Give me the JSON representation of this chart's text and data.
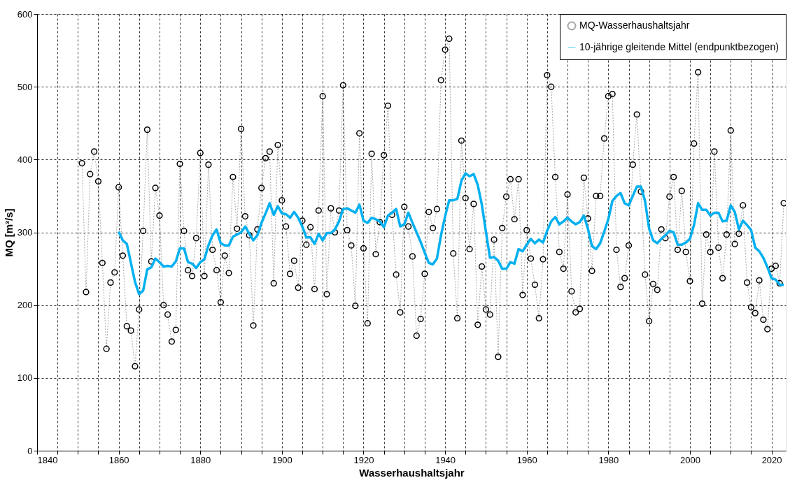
{
  "chart_data": {
    "type": "line",
    "xlabel": "Wasserhaushaltsjahr",
    "ylabel": "MQ [m³/s]",
    "x": [
      1851,
      1852,
      1853,
      1854,
      1855,
      1856,
      1857,
      1858,
      1859,
      1860,
      1861,
      1862,
      1863,
      1864,
      1865,
      1866,
      1867,
      1868,
      1869,
      1870,
      1871,
      1872,
      1873,
      1874,
      1875,
      1876,
      1877,
      1878,
      1879,
      1880,
      1881,
      1882,
      1883,
      1884,
      1885,
      1886,
      1887,
      1888,
      1889,
      1890,
      1891,
      1892,
      1893,
      1894,
      1895,
      1896,
      1897,
      1898,
      1899,
      1900,
      1901,
      1902,
      1903,
      1904,
      1905,
      1906,
      1907,
      1908,
      1909,
      1910,
      1911,
      1912,
      1913,
      1914,
      1915,
      1916,
      1917,
      1918,
      1919,
      1920,
      1921,
      1922,
      1923,
      1924,
      1925,
      1926,
      1927,
      1928,
      1929,
      1930,
      1931,
      1932,
      1933,
      1934,
      1935,
      1936,
      1937,
      1938,
      1939,
      1940,
      1941,
      1942,
      1943,
      1944,
      1945,
      1946,
      1947,
      1948,
      1949,
      1950,
      1951,
      1952,
      1953,
      1954,
      1955,
      1956,
      1957,
      1958,
      1959,
      1960,
      1961,
      1962,
      1963,
      1964,
      1965,
      1966,
      1967,
      1968,
      1969,
      1970,
      1971,
      1972,
      1973,
      1974,
      1975,
      1976,
      1977,
      1978,
      1979,
      1980,
      1981,
      1982,
      1983,
      1984,
      1985,
      1986,
      1987,
      1988,
      1989,
      1990,
      1991,
      1992,
      1993,
      1994,
      1995,
      1996,
      1997,
      1998,
      1999,
      2000,
      2001,
      2002,
      2003,
      2004,
      2005,
      2006,
      2007,
      2008,
      2009,
      2010,
      2011,
      2012,
      2013,
      2014,
      2015,
      2016,
      2017,
      2018,
      2019,
      2020,
      2021,
      2022,
      2023
    ],
    "series": [
      {
        "name": "MQ-Wasserhaushaltsjahr",
        "color": "#000000",
        "marker": "circle",
        "line_style": "dotted",
        "values": [
          395,
          218,
          380,
          411,
          370,
          258,
          140,
          231,
          245,
          362,
          268,
          171,
          165,
          116,
          194,
          302,
          441,
          260,
          361,
          323,
          200,
          187,
          150,
          166,
          394,
          302,
          248,
          240,
          292,
          409,
          240,
          393,
          276,
          248,
          204,
          268,
          244,
          376,
          305,
          442,
          322,
          296,
          172,
          304,
          361,
          402,
          411,
          230,
          420,
          344,
          308,
          243,
          261,
          224,
          316,
          283,
          307,
          222,
          330,
          487,
          215,
          333,
          300,
          330,
          502,
          303,
          282,
          199,
          436,
          278,
          175,
          408,
          270,
          314,
          406,
          474,
          324,
          242,
          190,
          335,
          308,
          267,
          158,
          181,
          243,
          328,
          306,
          332,
          509,
          551,
          566,
          271,
          182,
          426,
          347,
          277,
          339,
          173,
          253,
          194,
          187,
          290,
          129,
          306,
          349,
          373,
          318,
          373,
          214,
          303,
          264,
          228,
          182,
          263,
          516,
          500,
          376,
          273,
          250,
          352,
          219,
          190,
          195,
          375,
          319,
          247,
          350,
          350,
          429,
          487,
          490,
          276,
          225,
          237,
          282,
          393,
          462,
          356,
          242,
          178,
          229,
          221,
          304,
          292,
          349,
          376,
          276,
          357,
          273,
          233,
          422,
          520,
          202,
          297,
          273,
          411,
          279,
          237,
          297,
          440,
          284,
          298,
          337,
          231,
          197,
          189,
          234,
          180,
          167,
          250,
          254,
          230,
          340
        ]
      },
      {
        "name": "10-jährige gleitende Mittel (endpunktbezogen)",
        "color": "#00b0f0",
        "marker": "none",
        "line_style": "solid",
        "values": [
          null,
          null,
          null,
          null,
          null,
          null,
          null,
          null,
          null,
          301,
          289,
          284,
          258,
          232,
          215,
          220,
          249,
          252,
          264,
          259,
          253,
          254,
          253,
          260,
          278,
          278,
          259,
          257,
          251,
          259,
          263,
          282,
          296,
          304,
          285,
          282,
          282,
          294,
          297,
          300,
          308,
          298,
          289,
          296,
          313,
          326,
          340,
          324,
          336,
          326,
          325,
          320,
          328,
          320,
          308,
          293,
          293,
          284,
          298,
          289,
          299,
          299,
          304,
          315,
          332,
          333,
          330,
          327,
          338,
          316,
          313,
          320,
          318,
          315,
          307,
          323,
          327,
          332,
          308,
          311,
          327,
          313,
          300,
          287,
          272,
          258,
          256,
          264,
          296,
          322,
          344,
          344,
          346,
          371,
          381,
          377,
          380,
          365,
          338,
          301,
          265,
          266,
          261,
          250,
          250,
          259,
          257,
          277,
          274,
          283,
          291,
          285,
          290,
          286,
          302,
          315,
          321,
          311,
          315,
          320,
          315,
          311,
          314,
          323,
          305,
          281,
          277,
          285,
          301,
          318,
          343,
          350,
          354,
          340,
          337,
          350,
          363,
          363,
          343,
          305,
          289,
          285,
          291,
          296,
          302,
          300,
          283,
          283,
          286,
          291,
          310,
          340,
          331,
          331,
          323,
          327,
          327,
          315,
          316,
          337,
          328,
          304,
          316,
          310,
          303,
          279,
          274,
          265,
          252,
          237,
          235,
          228,
          228
        ]
      }
    ],
    "xlim": [
      1840,
      2023.5
    ],
    "xticks": [
      1840,
      {
        "value": 1845,
        "label": null
      },
      {
        "value": 1850,
        "label": null
      },
      {
        "value": 1855,
        "label": null
      },
      1860,
      {
        "value": 1865,
        "label": null
      },
      {
        "value": 1870,
        "label": null
      },
      {
        "value": 1875,
        "label": null
      },
      1880,
      {
        "value": 1885,
        "label": null
      },
      {
        "value": 1890,
        "label": null
      },
      {
        "value": 1895,
        "label": null
      },
      1900,
      {
        "value": 1905,
        "label": null
      },
      {
        "value": 1910,
        "label": null
      },
      {
        "value": 1915,
        "label": null
      },
      1920,
      {
        "value": 1925,
        "label": null
      },
      {
        "value": 1930,
        "label": null
      },
      {
        "value": 1935,
        "label": null
      },
      1940,
      {
        "value": 1945,
        "label": null
      },
      {
        "value": 1950,
        "label": null
      },
      {
        "value": 1955,
        "label": null
      },
      1960,
      {
        "value": 1965,
        "label": null
      },
      {
        "value": 1970,
        "label": null
      },
      {
        "value": 1975,
        "label": null
      },
      1980,
      {
        "value": 1985,
        "label": null
      },
      {
        "value": 1990,
        "label": null
      },
      {
        "value": 1995,
        "label": null
      },
      2000,
      {
        "value": 2005,
        "label": null
      },
      {
        "value": 2010,
        "label": null
      },
      {
        "value": 2015,
        "label": null
      },
      2020
    ],
    "ylim": [
      0,
      600
    ],
    "yticks": [
      0,
      100,
      200,
      300,
      400,
      500,
      600
    ],
    "grid": true,
    "legend": "top right"
  }
}
